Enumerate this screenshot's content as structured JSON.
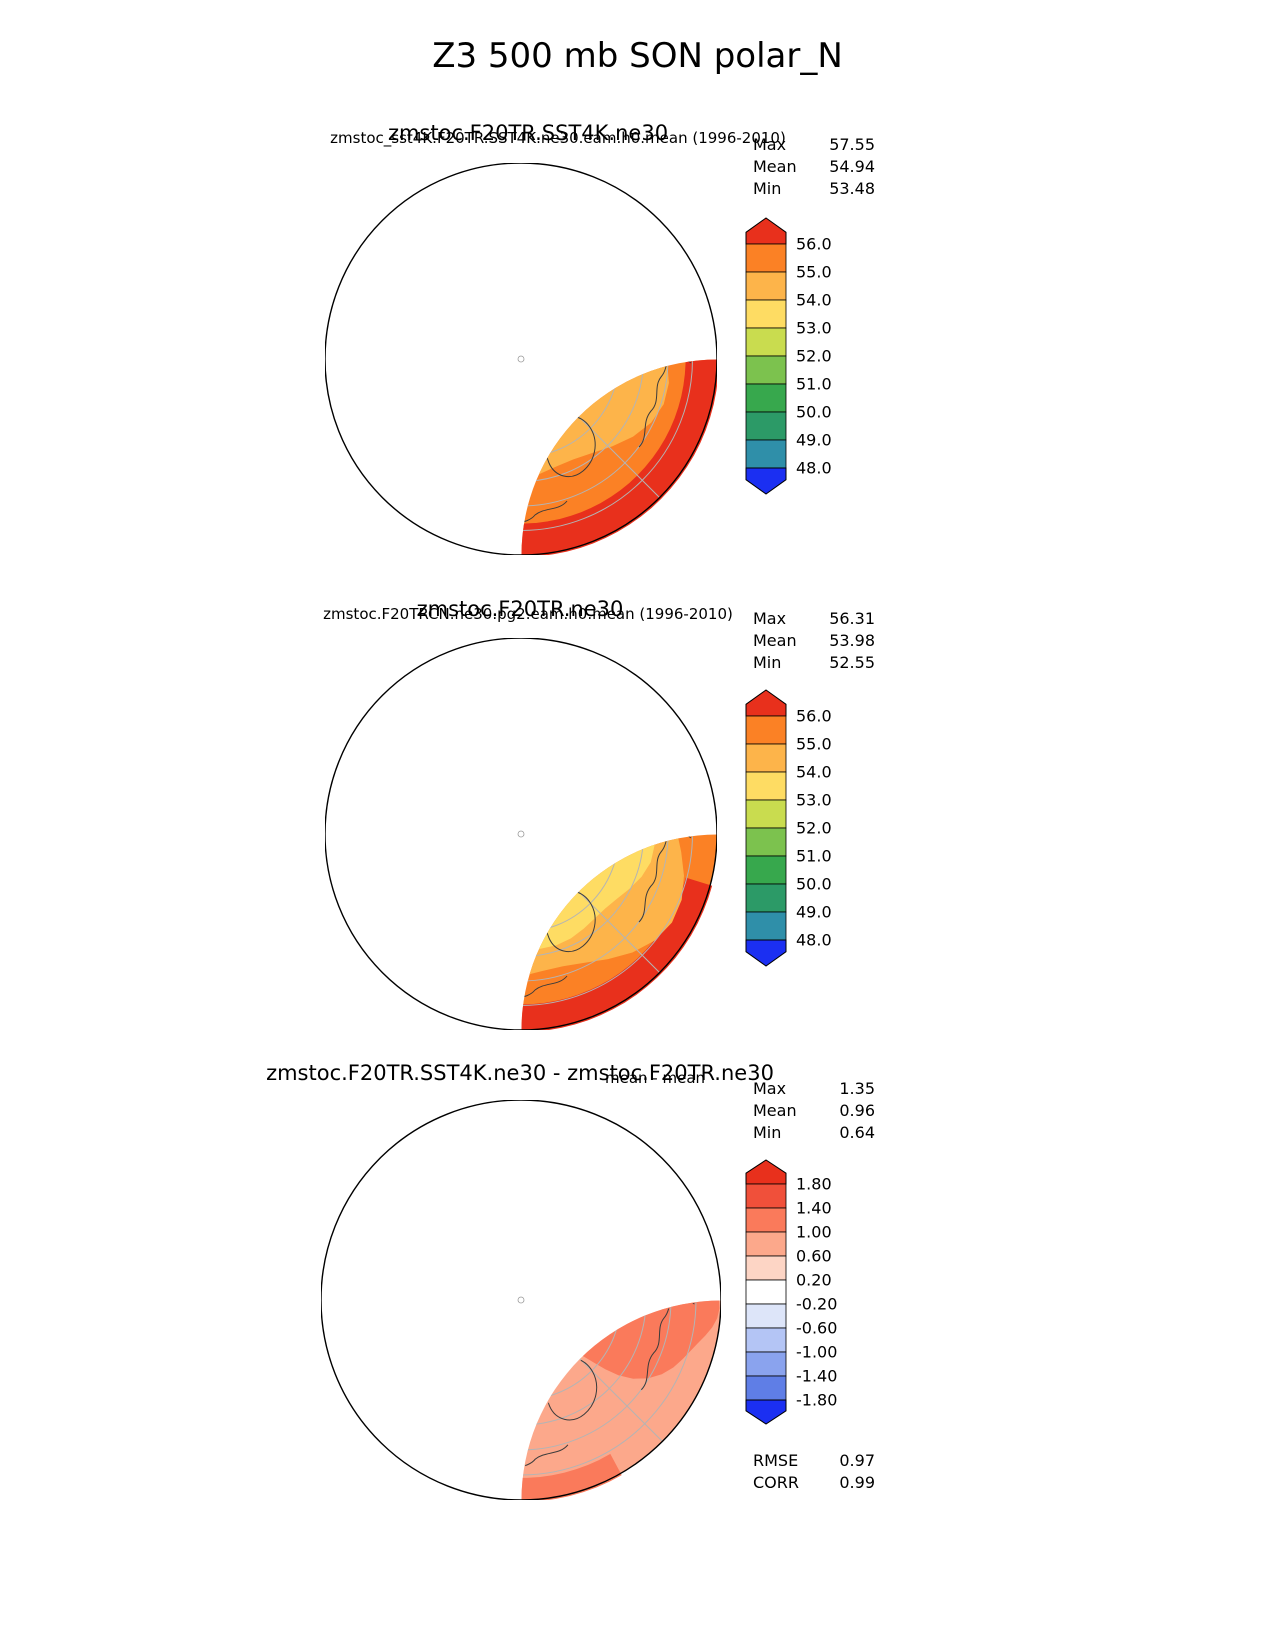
{
  "figure": {
    "title": "Z3 500 mb SON polar_N"
  },
  "labels": {
    "max": "Max",
    "mean": "Mean",
    "min": "Min",
    "rmse": "RMSE",
    "corr": "CORR"
  },
  "chart_data": [
    {
      "type": "heatmap",
      "projection": "north_polar_stereographic",
      "variable": "Z3 500 mb",
      "season": "SON",
      "title_main": "zmstoc.F20TR.SST4K.ne30",
      "title_overlay": "zmstoc_sst4K.F20TR.SST4K.ne30.eam.h0.mean (1996-2010)",
      "stats": {
        "max": "57.55",
        "mean": "54.94",
        "min": "53.48"
      },
      "colorbar": {
        "position": "right",
        "levels": [
          "56.0",
          "55.0",
          "54.0",
          "53.0",
          "52.0",
          "51.0",
          "50.0",
          "49.0",
          "48.0"
        ],
        "colors": [
          "#FB8125",
          "#FDB44A",
          "#FEDC63",
          "#C9DC4F",
          "#7CC24E",
          "#37A84D",
          "#2C9A67",
          "#2F8FA9"
        ],
        "over": "#E8301C",
        "under": "#1B2FF2"
      },
      "map": {
        "base": "#FB8125",
        "shapes": [
          {
            "t": "arc",
            "c": "#E8301C",
            "a0": 95,
            "a1": 215,
            "w": 0.14
          },
          {
            "t": "arc",
            "c": "#E8301C",
            "a0": -140,
            "a1": 70,
            "w": 0.15
          },
          {
            "t": "blob",
            "c": "#FDB44A",
            "cx": -0.03,
            "cy": -0.06,
            "rx": 0.75,
            "ry": 0.7,
            "rot": -10
          },
          {
            "t": "blob",
            "c": "#FEDC63",
            "cx": -0.05,
            "cy": -0.05,
            "rx": 0.47,
            "ry": 0.42,
            "rot": -20
          }
        ]
      }
    },
    {
      "type": "heatmap",
      "projection": "north_polar_stereographic",
      "variable": "Z3 500 mb",
      "season": "SON",
      "title_main": "zmstoc.F20TR.ne30",
      "title_overlay": "zmstoc.F20TRCN.ne30.pg2.eam.h0.mean (1996-2010)",
      "stats": {
        "max": "56.31",
        "mean": "53.98",
        "min": "52.55"
      },
      "colorbar": {
        "position": "right",
        "levels": [
          "56.0",
          "55.0",
          "54.0",
          "53.0",
          "52.0",
          "51.0",
          "50.0",
          "49.0",
          "48.0"
        ],
        "colors": [
          "#FB8125",
          "#FDB44A",
          "#FEDC63",
          "#C9DC4F",
          "#7CC24E",
          "#37A84D",
          "#2C9A67",
          "#2F8FA9"
        ],
        "over": "#E8301C",
        "under": "#1B2FF2"
      },
      "map": {
        "base": "#FB8125",
        "shapes": [
          {
            "t": "arc",
            "c": "#E8301C",
            "a0": -165,
            "a1": -15,
            "w": 0.12
          },
          {
            "t": "arc",
            "c": "#E8301C",
            "a0": 150,
            "a1": 198,
            "w": 0.07
          },
          {
            "t": "blob",
            "c": "#FDB44A",
            "cx": 0.0,
            "cy": -0.02,
            "rx": 0.83,
            "ry": 0.79,
            "rot": 0
          },
          {
            "t": "blob",
            "c": "#FEDC63",
            "cx": 0.02,
            "cy": 0.03,
            "rx": 0.6,
            "ry": 0.55,
            "rot": 10
          },
          {
            "t": "blob",
            "c": "#C9DC4F",
            "cx": 0.05,
            "cy": 0.04,
            "rx": 0.33,
            "ry": 0.27,
            "rot": -15
          }
        ]
      }
    },
    {
      "type": "heatmap",
      "projection": "north_polar_stereographic",
      "variable": "Z3 500 mb",
      "season": "SON",
      "title_main": "zmstoc.F20TR.SST4K.ne30 - zmstoc.F20TR.ne30",
      "title_overlay": "mean - mean",
      "stats": {
        "max": "1.35",
        "mean": "0.96",
        "min": "0.64"
      },
      "rmse": "0.97",
      "corr": "0.99",
      "colorbar": {
        "position": "right",
        "levels": [
          "1.80",
          "1.40",
          "1.00",
          "0.60",
          "0.20",
          "-0.20",
          "-0.60",
          "-1.00",
          "-1.40",
          "-1.80"
        ],
        "colors": [
          "#F0503A",
          "#FA7A5B",
          "#FCA88B",
          "#FDD5C5",
          "#FFFFFF",
          "#DDE5F9",
          "#B4C5F5",
          "#8AA3EE",
          "#5F7EE6"
        ],
        "over": "#E8301C",
        "under": "#1B2FF2"
      },
      "map": {
        "base": "#FCA88B",
        "shapes": [
          {
            "t": "arc",
            "c": "#FA7A5B",
            "a0": 55,
            "a1": 175,
            "w": 0.18
          },
          {
            "t": "blob",
            "c": "#FA7A5B",
            "cx": 0.52,
            "cy": 0.0,
            "rx": 0.48,
            "ry": 0.36,
            "rot": 5
          },
          {
            "t": "arc",
            "c": "#FA7A5B",
            "a0": -120,
            "a1": -60,
            "w": 0.1
          },
          {
            "t": "blob",
            "c": "#FDD5C5",
            "cx": -0.18,
            "cy": 0.28,
            "rx": 0.32,
            "ry": 0.22,
            "rot": 0
          }
        ]
      }
    }
  ]
}
